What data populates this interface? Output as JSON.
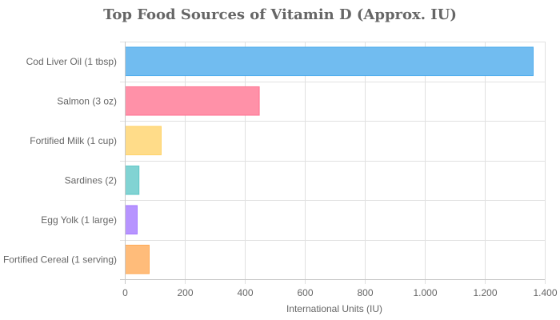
{
  "chart_data": {
    "type": "bar",
    "orientation": "horizontal",
    "title": "Top Food Sources of Vitamin D (Approx. IU)",
    "xlabel": "International Units (IU)",
    "ylabel": "",
    "categories": [
      "Cod Liver Oil (1 tbsp)",
      "Salmon (3 oz)",
      "Fortified Milk (1 cup)",
      "Sardines (2)",
      "Egg Yolk (1 large)",
      "Fortified Cereal (1 serving)"
    ],
    "values": [
      1360,
      447,
      120,
      46,
      40,
      80
    ],
    "colors": [
      "#36a2eb",
      "#ff6384",
      "#ffcd56",
      "#4bc0c0",
      "#9966ff",
      "#ff9f40"
    ],
    "fill_colors": [
      "#71bcf0",
      "#ff91a8",
      "#ffdc89",
      "#81d3d3",
      "#b794ff",
      "#ffbc7a"
    ],
    "xlim": [
      0,
      1400
    ],
    "xticks": [
      0,
      200,
      400,
      600,
      800,
      1000,
      1200,
      1400
    ],
    "xtick_labels": [
      "0",
      "200",
      "400",
      "600",
      "800",
      "1.000",
      "1.200",
      "1.400"
    ],
    "grid": true,
    "legend": "none"
  }
}
